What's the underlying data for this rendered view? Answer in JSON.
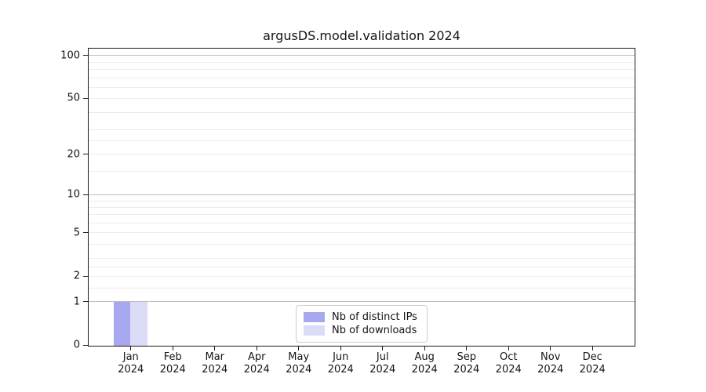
{
  "chart_data": {
    "type": "bar",
    "title": "argusDS.model.validation 2024",
    "x_axis": {
      "months": [
        "Jan",
        "Feb",
        "Mar",
        "Apr",
        "May",
        "Jun",
        "Jul",
        "Aug",
        "Sep",
        "Oct",
        "Nov",
        "Dec"
      ],
      "year": "2024"
    },
    "y_axis": {
      "scale": "log1p",
      "max": 112,
      "ticks": [
        [
          0,
          "0"
        ],
        [
          1,
          "1"
        ],
        [
          2,
          "2"
        ],
        [
          5,
          "5"
        ],
        [
          10,
          "10"
        ],
        [
          20,
          "20"
        ],
        [
          50,
          "50"
        ],
        [
          100,
          "100"
        ]
      ],
      "major_grid_values": [
        1,
        10,
        100
      ],
      "minor_grid_values": [
        1.5,
        2,
        2.5,
        3,
        4,
        5,
        6,
        7,
        8,
        9,
        15,
        20,
        25,
        30,
        40,
        50,
        60,
        70,
        80,
        90
      ]
    },
    "series": [
      {
        "name": "Nb of distinct IPs",
        "color": "#a8a8f0",
        "values": [
          1,
          0,
          0,
          0,
          0,
          0,
          0,
          0,
          0,
          0,
          0,
          0
        ]
      },
      {
        "name": "Nb of downloads",
        "color": "#dcdcf8",
        "values": [
          1,
          0,
          0,
          0,
          0,
          0,
          0,
          0,
          0,
          0,
          0,
          0
        ]
      }
    ],
    "legend": {
      "position": "lower center"
    },
    "colors": {
      "grid_major": "#bdbdbd",
      "grid_minor": "#ebebeb",
      "spine": "#1a1a1a",
      "text": "#151515",
      "legend_border": "#cccccc"
    }
  }
}
